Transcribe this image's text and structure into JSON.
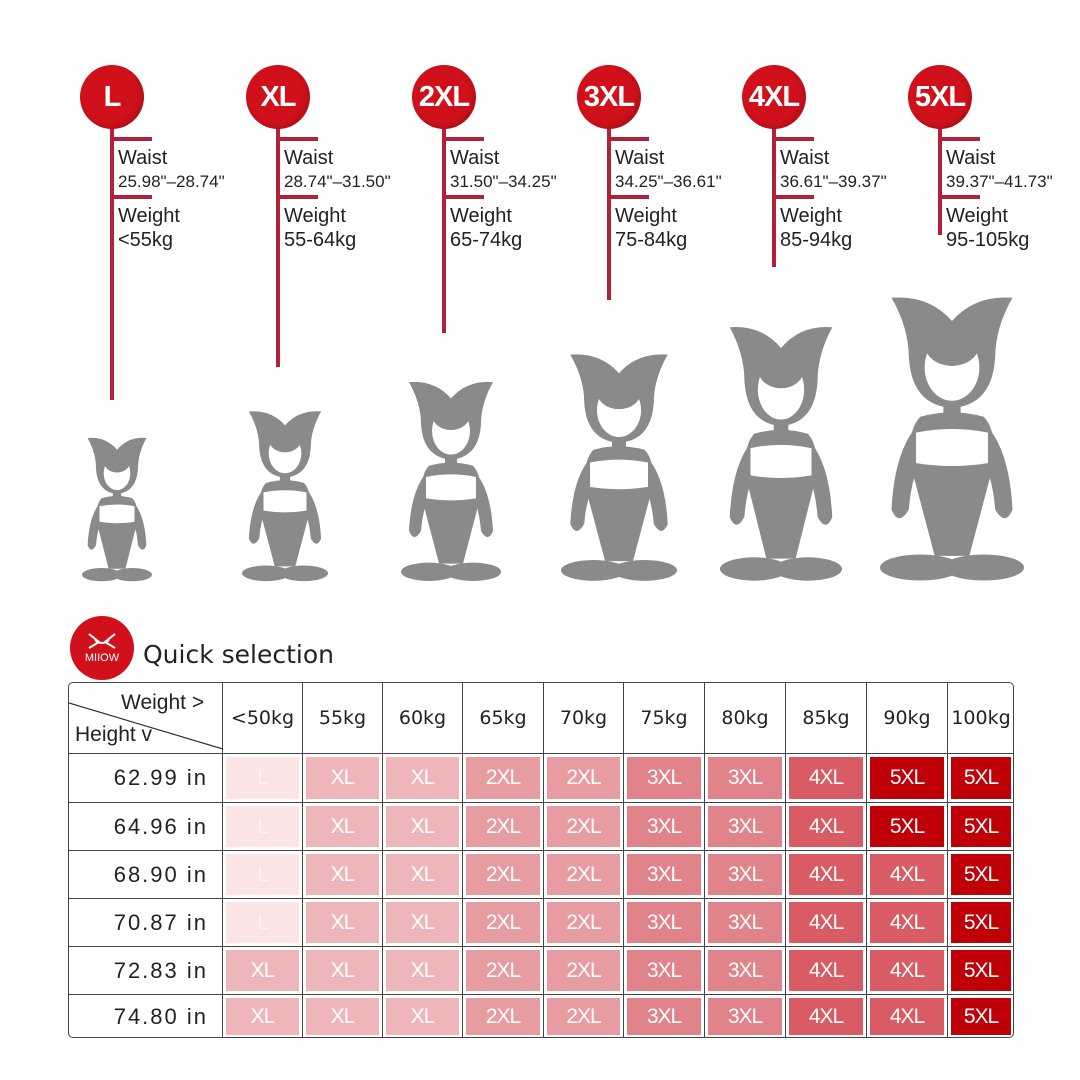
{
  "sizes": [
    {
      "label": "L",
      "waist_label": "Waist",
      "waist": "25.98\"–28.74\"",
      "weight_label": "Weight",
      "weight": "<55kg"
    },
    {
      "label": "XL",
      "waist_label": "Waist",
      "waist": "28.74\"–31.50\"",
      "weight_label": "Weight",
      "weight": "55-64kg"
    },
    {
      "label": "2XL",
      "waist_label": "Waist",
      "waist": "31.50\"–34.25\"",
      "weight_label": "Weight",
      "weight": "65-74kg"
    },
    {
      "label": "3XL",
      "waist_label": "Waist",
      "waist": "34.25\"–36.61\"",
      "weight_label": "Weight",
      "weight": "75-84kg"
    },
    {
      "label": "4XL",
      "waist_label": "Waist",
      "waist": "36.61\"–39.37\"",
      "weight_label": "Weight",
      "weight": "85-94kg"
    },
    {
      "label": "5XL",
      "waist_label": "Waist",
      "waist": "39.37\"–41.73\"",
      "weight_label": "Weight",
      "weight": "95-105kg"
    }
  ],
  "logo_text": "MIIOW",
  "section_title": "Quick selection",
  "table": {
    "corner_weight": "Weight >",
    "corner_height": "Height v",
    "columns": [
      "<50kg",
      "55kg",
      "60kg",
      "65kg",
      "70kg",
      "75kg",
      "80kg",
      "85kg",
      "90kg",
      "100kg"
    ],
    "rows": [
      {
        "height": "62.99 in",
        "cells": [
          "L",
          "XL",
          "XL",
          "2XL",
          "2XL",
          "3XL",
          "3XL",
          "4XL",
          "5XL",
          "5XL"
        ]
      },
      {
        "height": "64.96 in",
        "cells": [
          "L",
          "XL",
          "XL",
          "2XL",
          "2XL",
          "3XL",
          "3XL",
          "4XL",
          "5XL",
          "5XL"
        ]
      },
      {
        "height": "68.90 in",
        "cells": [
          "L",
          "XL",
          "XL",
          "2XL",
          "2XL",
          "3XL",
          "3XL",
          "4XL",
          "4XL",
          "5XL"
        ]
      },
      {
        "height": "70.87 in",
        "cells": [
          "L",
          "XL",
          "XL",
          "2XL",
          "2XL",
          "3XL",
          "3XL",
          "4XL",
          "4XL",
          "5XL"
        ]
      },
      {
        "height": "72.83 in",
        "cells": [
          "XL",
          "XL",
          "XL",
          "2XL",
          "2XL",
          "3XL",
          "3XL",
          "4XL",
          "4XL",
          "5XL"
        ]
      },
      {
        "height": "74.80 in",
        "cells": [
          "XL",
          "XL",
          "XL",
          "2XL",
          "2XL",
          "3XL",
          "3XL",
          "4XL",
          "4XL",
          "5XL"
        ]
      }
    ]
  },
  "colors": {
    "badge": "#d0111b",
    "stem": "#b3203a",
    "figure": "#8a8a8a",
    "L": "#fbe4e4",
    "XL": "#efb6b9",
    "2XL": "#e69ca0",
    "3XL": "#e0838a",
    "4XL": "#d95b63",
    "5XL": "#c00008"
  }
}
